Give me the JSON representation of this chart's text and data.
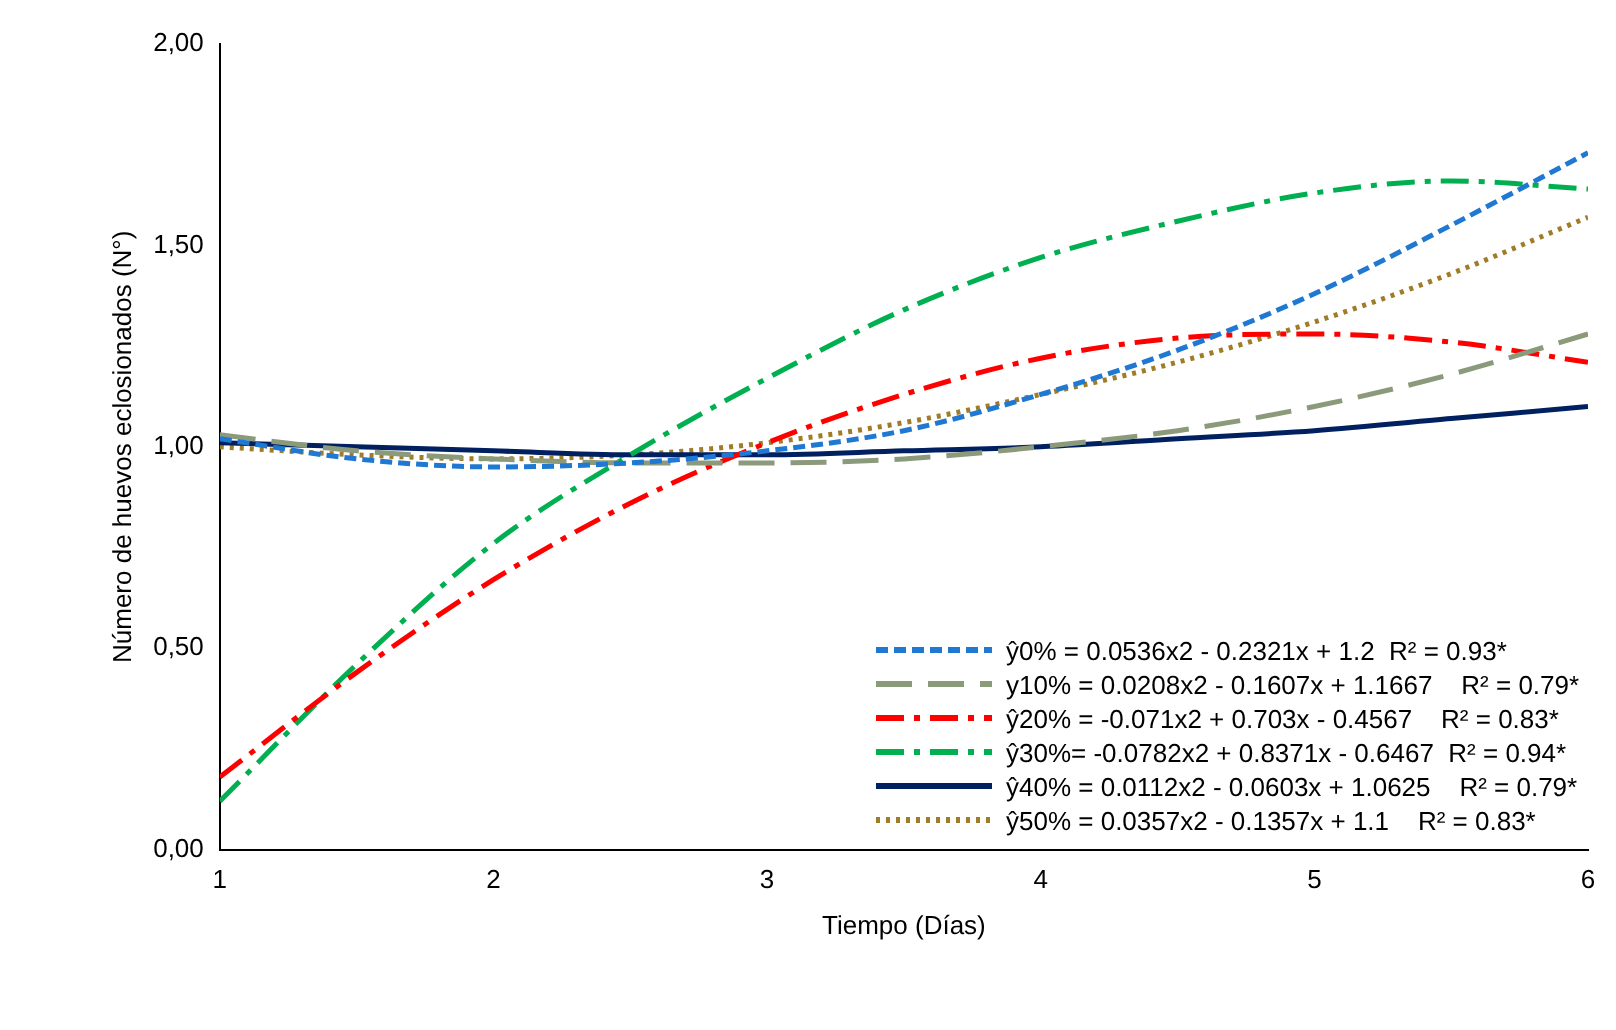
{
  "chart_data": {
    "type": "line",
    "xlabel": "Tiempo (Días)",
    "ylabel": "Número de huevos eclosionados (N°)",
    "x": [
      1,
      1.5,
      2,
      2.5,
      3,
      3.5,
      4,
      4.5,
      5,
      5.5,
      6
    ],
    "xlim": [
      1,
      6
    ],
    "xticks": [
      1,
      2,
      3,
      4,
      5,
      6
    ],
    "ylim": [
      0,
      2
    ],
    "yticks": [
      {
        "value": 0,
        "label": "0,00"
      },
      {
        "value": 0.5,
        "label": "0,50"
      },
      {
        "value": 1,
        "label": "1,00"
      },
      {
        "value": 1.5,
        "label": "1,50"
      },
      {
        "value": 2,
        "label": "2,00"
      }
    ],
    "grid": false,
    "legend": "bottom right",
    "marker": "none",
    "series": [
      {
        "name": "ŷ0% = 0.0536x2 - 0.2321x + 1.2  R² = 0.93*",
        "color": "#1f78d1",
        "line_style": "dashed",
        "values": [
          1.02,
          0.97,
          0.95,
          0.96,
          0.99,
          1.04,
          1.13,
          1.24,
          1.38,
          1.55,
          1.73
        ]
      },
      {
        "name": "y10% = 0.0208x2 - 0.1607x + 1.1667    R² = 0.79*",
        "color": "#8c9a7c",
        "line_style": "longdash",
        "values": [
          1.03,
          0.99,
          0.97,
          0.96,
          0.96,
          0.97,
          1.0,
          1.04,
          1.1,
          1.18,
          1.28
        ]
      },
      {
        "name": "ŷ20% = -0.071x2 + 0.703x - 0.4567    R² = 0.83*",
        "color": "#ff0000",
        "line_style": "dashdot",
        "values": [
          0.18,
          0.44,
          0.67,
          0.86,
          1.01,
          1.13,
          1.22,
          1.27,
          1.28,
          1.26,
          1.21
        ]
      },
      {
        "name": "ŷ30%= -0.0782x2 + 0.8371x - 0.6467  R² = 0.94*",
        "color": "#00b050",
        "line_style": "dashdot",
        "values": [
          0.12,
          0.46,
          0.76,
          0.98,
          1.17,
          1.34,
          1.47,
          1.56,
          1.63,
          1.66,
          1.64
        ]
      },
      {
        "name": "ŷ40% = 0.0112x2 - 0.0603x + 1.0625    R² = 0.79*",
        "color": "#002060",
        "line_style": "solid",
        "values": [
          1.01,
          1.0,
          0.99,
          0.98,
          0.98,
          0.99,
          1.0,
          1.02,
          1.04,
          1.07,
          1.1
        ]
      },
      {
        "name": "ŷ50% = 0.0357x2 - 0.1357x + 1.1    R² = 0.83*",
        "color": "#a07c28",
        "line_style": "dotted",
        "values": [
          1.0,
          0.98,
          0.97,
          0.98,
          1.01,
          1.06,
          1.13,
          1.21,
          1.31,
          1.43,
          1.57
        ]
      }
    ]
  }
}
